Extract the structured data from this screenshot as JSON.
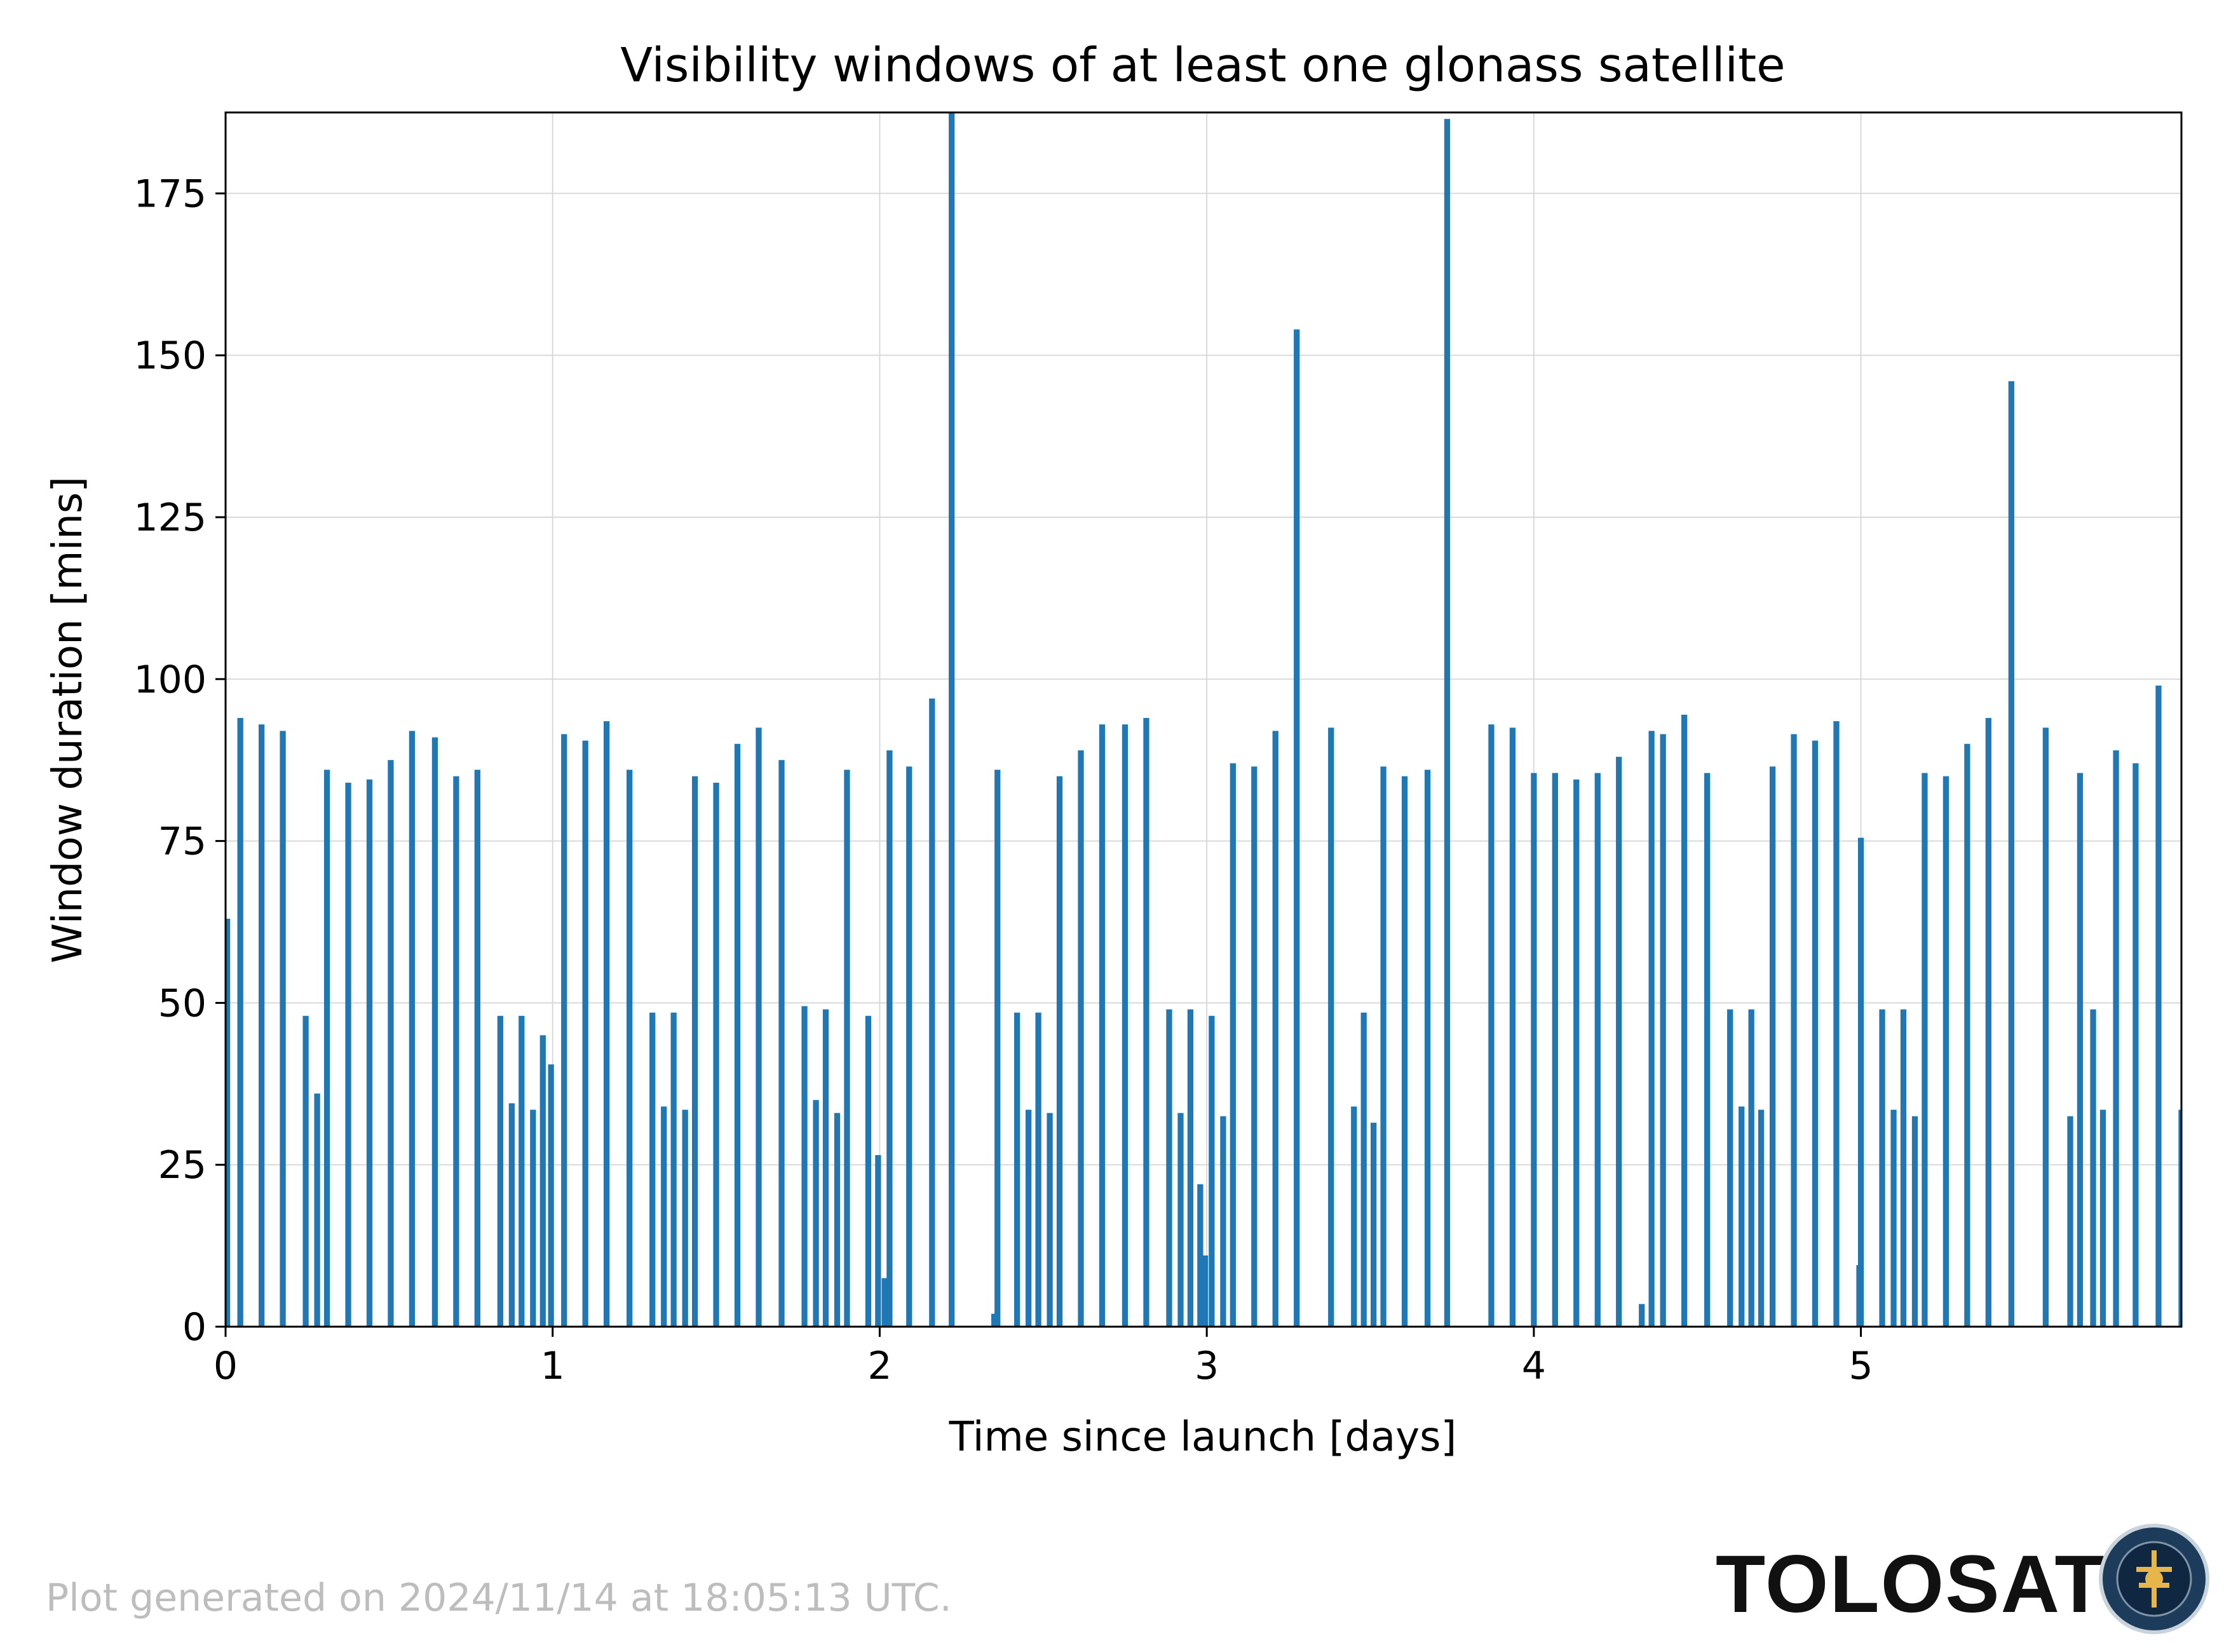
{
  "chart_data": {
    "type": "bar",
    "title": "Visibility windows of at least one glonass satellite",
    "xlabel": "Time since launch [days]",
    "ylabel": "Window duration [mins]",
    "xlim": [
      0,
      5.98
    ],
    "ylim": [
      0,
      187.5
    ],
    "xticks": [
      0,
      1,
      2,
      3,
      4,
      5
    ],
    "yticks": [
      0,
      25,
      50,
      75,
      100,
      125,
      150,
      175
    ],
    "grid": true,
    "bar_color": "#1f77b4",
    "bar_width_days": 0.018,
    "x": [
      0.005,
      0.045,
      0.11,
      0.175,
      0.245,
      0.28,
      0.31,
      0.375,
      0.44,
      0.505,
      0.57,
      0.64,
      0.705,
      0.77,
      0.84,
      0.875,
      0.905,
      0.94,
      0.97,
      0.995,
      1.035,
      1.1,
      1.165,
      1.235,
      1.305,
      1.34,
      1.37,
      1.405,
      1.435,
      1.5,
      1.565,
      1.63,
      1.7,
      1.77,
      1.805,
      1.835,
      1.87,
      1.9,
      1.965,
      1.995,
      2.015,
      2.03,
      2.09,
      2.16,
      2.22,
      2.35,
      2.36,
      2.42,
      2.455,
      2.485,
      2.52,
      2.55,
      2.615,
      2.68,
      2.75,
      2.815,
      2.885,
      2.92,
      2.95,
      2.98,
      2.995,
      3.015,
      3.05,
      3.08,
      3.145,
      3.21,
      3.275,
      3.38,
      3.45,
      3.48,
      3.51,
      3.54,
      3.605,
      3.675,
      3.735,
      3.87,
      3.935,
      4.0,
      4.065,
      4.13,
      4.195,
      4.26,
      4.33,
      4.36,
      4.395,
      4.46,
      4.53,
      4.6,
      4.635,
      4.665,
      4.695,
      4.73,
      4.795,
      4.86,
      4.925,
      4.995,
      5.0,
      5.065,
      5.1,
      5.13,
      5.165,
      5.195,
      5.26,
      5.325,
      5.39,
      5.46,
      5.565,
      5.64,
      5.67,
      5.71,
      5.74,
      5.78,
      5.84,
      5.91,
      5.98
    ],
    "values": [
      63,
      94,
      93,
      92,
      48,
      36,
      86,
      84,
      84.5,
      87.5,
      92,
      91,
      85,
      86,
      48,
      34.5,
      48,
      33.5,
      45,
      40.5,
      91.5,
      90.5,
      93.5,
      86,
      48.5,
      34,
      48.5,
      33.5,
      85,
      84,
      90,
      92.5,
      87.5,
      49.5,
      35,
      49,
      33,
      86,
      48,
      26.5,
      7.5,
      89,
      86.5,
      97,
      187.5,
      2,
      86,
      48.5,
      33.5,
      48.5,
      33,
      85,
      89,
      93,
      93,
      94,
      49,
      33,
      49,
      22,
      11,
      48,
      32.5,
      87,
      86.5,
      92,
      154,
      92.5,
      34,
      48.5,
      31.5,
      86.5,
      85,
      86,
      186.5,
      93,
      92.5,
      85.5,
      85.5,
      84.5,
      85.5,
      88,
      3.5,
      92,
      91.5,
      94.5,
      85.5,
      49,
      34,
      49,
      33.5,
      86.5,
      91.5,
      90.5,
      93.5,
      9.5,
      75.5,
      49,
      33.5,
      49,
      32.5,
      85.5,
      85,
      90,
      94,
      146,
      92.5,
      32.5,
      85.5,
      49,
      33.5,
      89,
      87,
      99,
      33.5
    ]
  },
  "footer": {
    "generated_note": "Plot generated on 2024/11/14 at 18:05:13 UTC.",
    "brand_name": "TOLOSAT"
  },
  "colors": {
    "bars": "#1f77b4",
    "grid": "#d9d9d9",
    "axis": "#000000",
    "footer_text": "#bdbdbd"
  }
}
